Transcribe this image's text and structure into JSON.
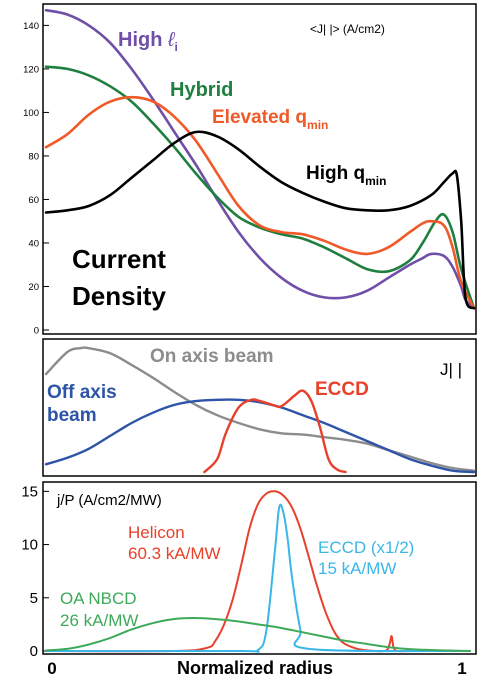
{
  "chart_data": [
    {
      "type": "line",
      "title": "Current Density",
      "unit_label": "<J| |>  (A/cm2)",
      "xlim": [
        0,
        1
      ],
      "ylim": [
        0,
        148
      ],
      "yticks": [
        0,
        20,
        40,
        60,
        80,
        100,
        120,
        140
      ],
      "series": [
        {
          "name": "High ℓi",
          "color": "#6f4fa8",
          "x": [
            0,
            0.05,
            0.1,
            0.15,
            0.2,
            0.25,
            0.3,
            0.35,
            0.4,
            0.45,
            0.5,
            0.55,
            0.6,
            0.65,
            0.7,
            0.75,
            0.8,
            0.85,
            0.88,
            0.9,
            0.93,
            0.95,
            0.97,
            0.98,
            1.0
          ],
          "y": [
            147,
            145,
            140,
            132,
            120,
            106,
            91,
            76,
            60,
            45,
            33,
            24,
            18,
            15,
            15,
            18,
            24,
            30,
            33,
            35,
            34,
            29,
            20,
            14,
            10
          ]
        },
        {
          "name": "Hybrid",
          "color": "#1f7f3f",
          "x": [
            0,
            0.05,
            0.1,
            0.15,
            0.2,
            0.25,
            0.3,
            0.35,
            0.4,
            0.45,
            0.5,
            0.55,
            0.6,
            0.65,
            0.7,
            0.75,
            0.8,
            0.85,
            0.88,
            0.91,
            0.93,
            0.95,
            0.97,
            1.0
          ],
          "y": [
            121,
            120,
            117,
            112,
            105,
            95,
            84,
            72,
            61,
            52,
            47,
            44,
            42,
            38,
            33,
            28,
            27,
            32,
            40,
            50,
            53,
            45,
            28,
            10
          ]
        },
        {
          "name": "Elevated qmin",
          "color": "#f05a28",
          "x": [
            0,
            0.05,
            0.1,
            0.15,
            0.2,
            0.25,
            0.3,
            0.35,
            0.4,
            0.45,
            0.5,
            0.55,
            0.6,
            0.65,
            0.7,
            0.75,
            0.8,
            0.85,
            0.88,
            0.9,
            0.93,
            0.95,
            0.97,
            1.0
          ],
          "y": [
            84,
            90,
            99,
            105,
            107,
            105,
            98,
            87,
            72,
            57,
            48,
            45,
            44,
            41,
            37,
            35,
            38,
            45,
            49,
            50,
            48,
            38,
            22,
            10
          ]
        },
        {
          "name": "High qmin",
          "color": "#000000",
          "x": [
            0,
            0.05,
            0.1,
            0.15,
            0.2,
            0.25,
            0.3,
            0.35,
            0.4,
            0.45,
            0.5,
            0.55,
            0.6,
            0.65,
            0.7,
            0.75,
            0.8,
            0.85,
            0.9,
            0.93,
            0.95,
            0.96,
            0.97,
            0.98,
            1.0
          ],
          "y": [
            54,
            55,
            57,
            62,
            70,
            78,
            86,
            91,
            89,
            83,
            75,
            68,
            63,
            59,
            56,
            55,
            55,
            57,
            62,
            68,
            72,
            71,
            50,
            15,
            10
          ]
        }
      ],
      "annotations": [
        {
          "text": "High ",
          "sub": "i",
          "script": "ℓ",
          "color": "#6f4fa8"
        },
        {
          "text": "Hybrid",
          "color": "#1f7f3f"
        },
        {
          "text": "Elevated q",
          "sub": "min",
          "color": "#f05a28"
        },
        {
          "text": "High q",
          "sub": "min",
          "color": "#000000"
        },
        {
          "text": "Current",
          "color": "#000000"
        },
        {
          "text": "Density",
          "color": "#000000"
        }
      ]
    },
    {
      "type": "line",
      "label": "J| |",
      "xlim": [
        0,
        1
      ],
      "ylim": [
        0,
        1
      ],
      "series": [
        {
          "name": "On axis beam",
          "color": "#8c8c8c",
          "x": [
            0,
            0.05,
            0.08,
            0.1,
            0.15,
            0.2,
            0.25,
            0.3,
            0.35,
            0.4,
            0.45,
            0.5,
            0.55,
            0.6,
            0.65,
            0.7,
            0.75,
            0.8,
            0.85,
            0.9,
            0.95,
            1.0
          ],
          "y": [
            0.76,
            0.93,
            0.96,
            0.96,
            0.92,
            0.83,
            0.73,
            0.62,
            0.52,
            0.44,
            0.38,
            0.33,
            0.3,
            0.29,
            0.27,
            0.25,
            0.22,
            0.17,
            0.12,
            0.07,
            0.03,
            0.01
          ]
        },
        {
          "name": "Off axis beam",
          "color": "#2e54a8",
          "x": [
            0,
            0.05,
            0.1,
            0.15,
            0.2,
            0.25,
            0.3,
            0.35,
            0.4,
            0.45,
            0.5,
            0.55,
            0.6,
            0.65,
            0.7,
            0.75,
            0.8,
            0.85,
            0.9,
            0.95,
            1.0
          ],
          "y": [
            0.06,
            0.11,
            0.18,
            0.28,
            0.38,
            0.46,
            0.52,
            0.55,
            0.56,
            0.56,
            0.54,
            0.5,
            0.44,
            0.38,
            0.31,
            0.24,
            0.17,
            0.1,
            0.05,
            0.01,
            0.0
          ]
        },
        {
          "name": "ECCD",
          "color": "#e8402a",
          "x": [
            0.37,
            0.4,
            0.42,
            0.45,
            0.48,
            0.5,
            0.53,
            0.55,
            0.58,
            0.6,
            0.62,
            0.64,
            0.66,
            0.68,
            0.7
          ],
          "y": [
            0.0,
            0.1,
            0.3,
            0.5,
            0.56,
            0.55,
            0.52,
            0.51,
            0.59,
            0.63,
            0.55,
            0.35,
            0.1,
            0.02,
            0.0
          ]
        }
      ]
    },
    {
      "type": "line",
      "ylabel": "j/P (A/cm2/MW)",
      "xlabel": "Normalized radius",
      "xlim": [
        0,
        1
      ],
      "ylim": [
        0,
        15.5
      ],
      "yticks": [
        0,
        5,
        10,
        15
      ],
      "xticks": [
        "0",
        "1"
      ],
      "series": [
        {
          "name": "Helicon",
          "value_label": "60.3 kA/MW",
          "color": "#e8402a",
          "x": [
            0,
            0.3,
            0.38,
            0.4,
            0.42,
            0.44,
            0.46,
            0.48,
            0.5,
            0.52,
            0.54,
            0.56,
            0.58,
            0.6,
            0.62,
            0.64,
            0.66,
            0.68,
            0.7,
            0.73,
            0.76,
            0.8,
            0.81,
            0.815,
            0.82,
            0.83,
            0.86,
            1.0
          ],
          "y": [
            0,
            0,
            0.3,
            1.0,
            2.5,
            4.8,
            8.0,
            11.5,
            13.8,
            14.8,
            15.0,
            14.6,
            13.5,
            11.5,
            8.8,
            6.0,
            3.6,
            1.8,
            0.8,
            0.25,
            0.05,
            0.02,
            0.6,
            1.4,
            0.3,
            0,
            0,
            0
          ]
        },
        {
          "name": "ECCD (x1/2)",
          "value_label": "15 kA/MW",
          "color": "#3ab7e8",
          "x": [
            0,
            0.45,
            0.5,
            0.52,
            0.54,
            0.55,
            0.56,
            0.57,
            0.58,
            0.6,
            0.62,
            1.0
          ],
          "y": [
            0,
            0,
            0.1,
            2.0,
            9.5,
            13.5,
            13.0,
            10.5,
            7.0,
            2.0,
            0.2,
            0
          ]
        },
        {
          "name": "OA NBCD",
          "value_label": "26 kA/MW",
          "color": "#3daa5a",
          "x": [
            0,
            0.05,
            0.1,
            0.15,
            0.2,
            0.25,
            0.3,
            0.35,
            0.4,
            0.45,
            0.5,
            0.55,
            0.6,
            0.65,
            0.7,
            0.75,
            0.8,
            0.85,
            0.9,
            0.95,
            1.0
          ],
          "y": [
            0.05,
            0.2,
            0.6,
            1.2,
            2.0,
            2.6,
            3.0,
            3.1,
            3.0,
            2.8,
            2.5,
            2.2,
            1.8,
            1.4,
            1.0,
            0.7,
            0.4,
            0.2,
            0.1,
            0.05,
            0.0
          ]
        }
      ]
    }
  ]
}
